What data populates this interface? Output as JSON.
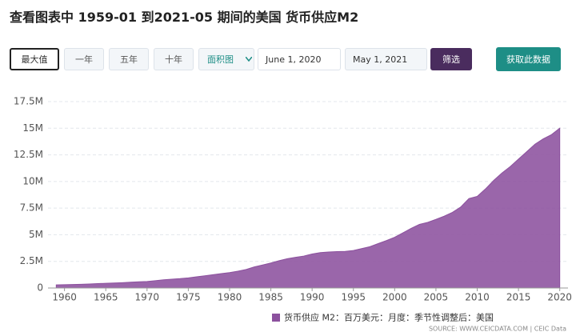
{
  "title": "查看图表中 1959-01 到2021-05 期间的美国 货币供应M2",
  "controls": {
    "ranges": [
      "最大值",
      "一年",
      "五年",
      "十年"
    ],
    "chart_type": "面积图",
    "start_date": "June 1, 2020",
    "end_date": "May 1, 2021",
    "filter": "筛选",
    "get_data": "获取此数据"
  },
  "chart_data": {
    "type": "area",
    "color": "#8c519e",
    "series": [
      {
        "name": "货币供应 M2：百万美元：月度：季节性调整后：美国",
        "color": "#8c519e",
        "x": [
          1959,
          1960,
          1961,
          1962,
          1963,
          1964,
          1965,
          1966,
          1967,
          1968,
          1969,
          1970,
          1971,
          1972,
          1973,
          1974,
          1975,
          1976,
          1977,
          1978,
          1979,
          1980,
          1981,
          1982,
          1983,
          1984,
          1985,
          1986,
          1987,
          1988,
          1989,
          1990,
          1991,
          1992,
          1993,
          1994,
          1995,
          1996,
          1997,
          1998,
          1999,
          2000,
          2001,
          2002,
          2003,
          2004,
          2005,
          2006,
          2007,
          2008,
          2009,
          2010,
          2011,
          2012,
          2013,
          2014,
          2015,
          2016,
          2017,
          2018,
          2019,
          2020
        ],
        "values": [
          290000,
          310000,
          330000,
          350000,
          380000,
          410000,
          440000,
          470000,
          500000,
          540000,
          580000,
          610000,
          690000,
          770000,
          830000,
          880000,
          950000,
          1050000,
          1150000,
          1250000,
          1350000,
          1450000,
          1580000,
          1740000,
          1980000,
          2160000,
          2350000,
          2560000,
          2750000,
          2880000,
          3000000,
          3190000,
          3320000,
          3380000,
          3420000,
          3440000,
          3520000,
          3700000,
          3880000,
          4170000,
          4450000,
          4760000,
          5180000,
          5600000,
          5970000,
          6160000,
          6440000,
          6740000,
          7100000,
          7600000,
          8400000,
          8600000,
          9300000,
          10100000,
          10800000,
          11400000,
          12100000,
          12800000,
          13500000,
          14000000,
          14400000,
          15000000
        ]
      }
    ],
    "xlim": [
      1958,
      2021
    ],
    "xticks": [
      1960,
      1965,
      1970,
      1975,
      1980,
      1985,
      1990,
      1995,
      2000,
      2005,
      2010,
      2015,
      2020
    ],
    "ylim": [
      0,
      17500000
    ],
    "yticks": [
      0,
      {
        "value": 2500000,
        "label": "2.5M"
      },
      {
        "value": 5000000,
        "label": "5M"
      },
      {
        "value": 7500000,
        "label": "7.5M"
      },
      {
        "value": 10000000,
        "label": "10M"
      },
      {
        "value": 12500000,
        "label": "12.5M"
      },
      {
        "value": 15000000,
        "label": "15M"
      },
      {
        "value": 17500000,
        "label": "17.5M"
      }
    ],
    "grid": true,
    "legend": "bottom",
    "source": "SOURCE: WWW.CEICDATA.COM | CEIC Data"
  }
}
